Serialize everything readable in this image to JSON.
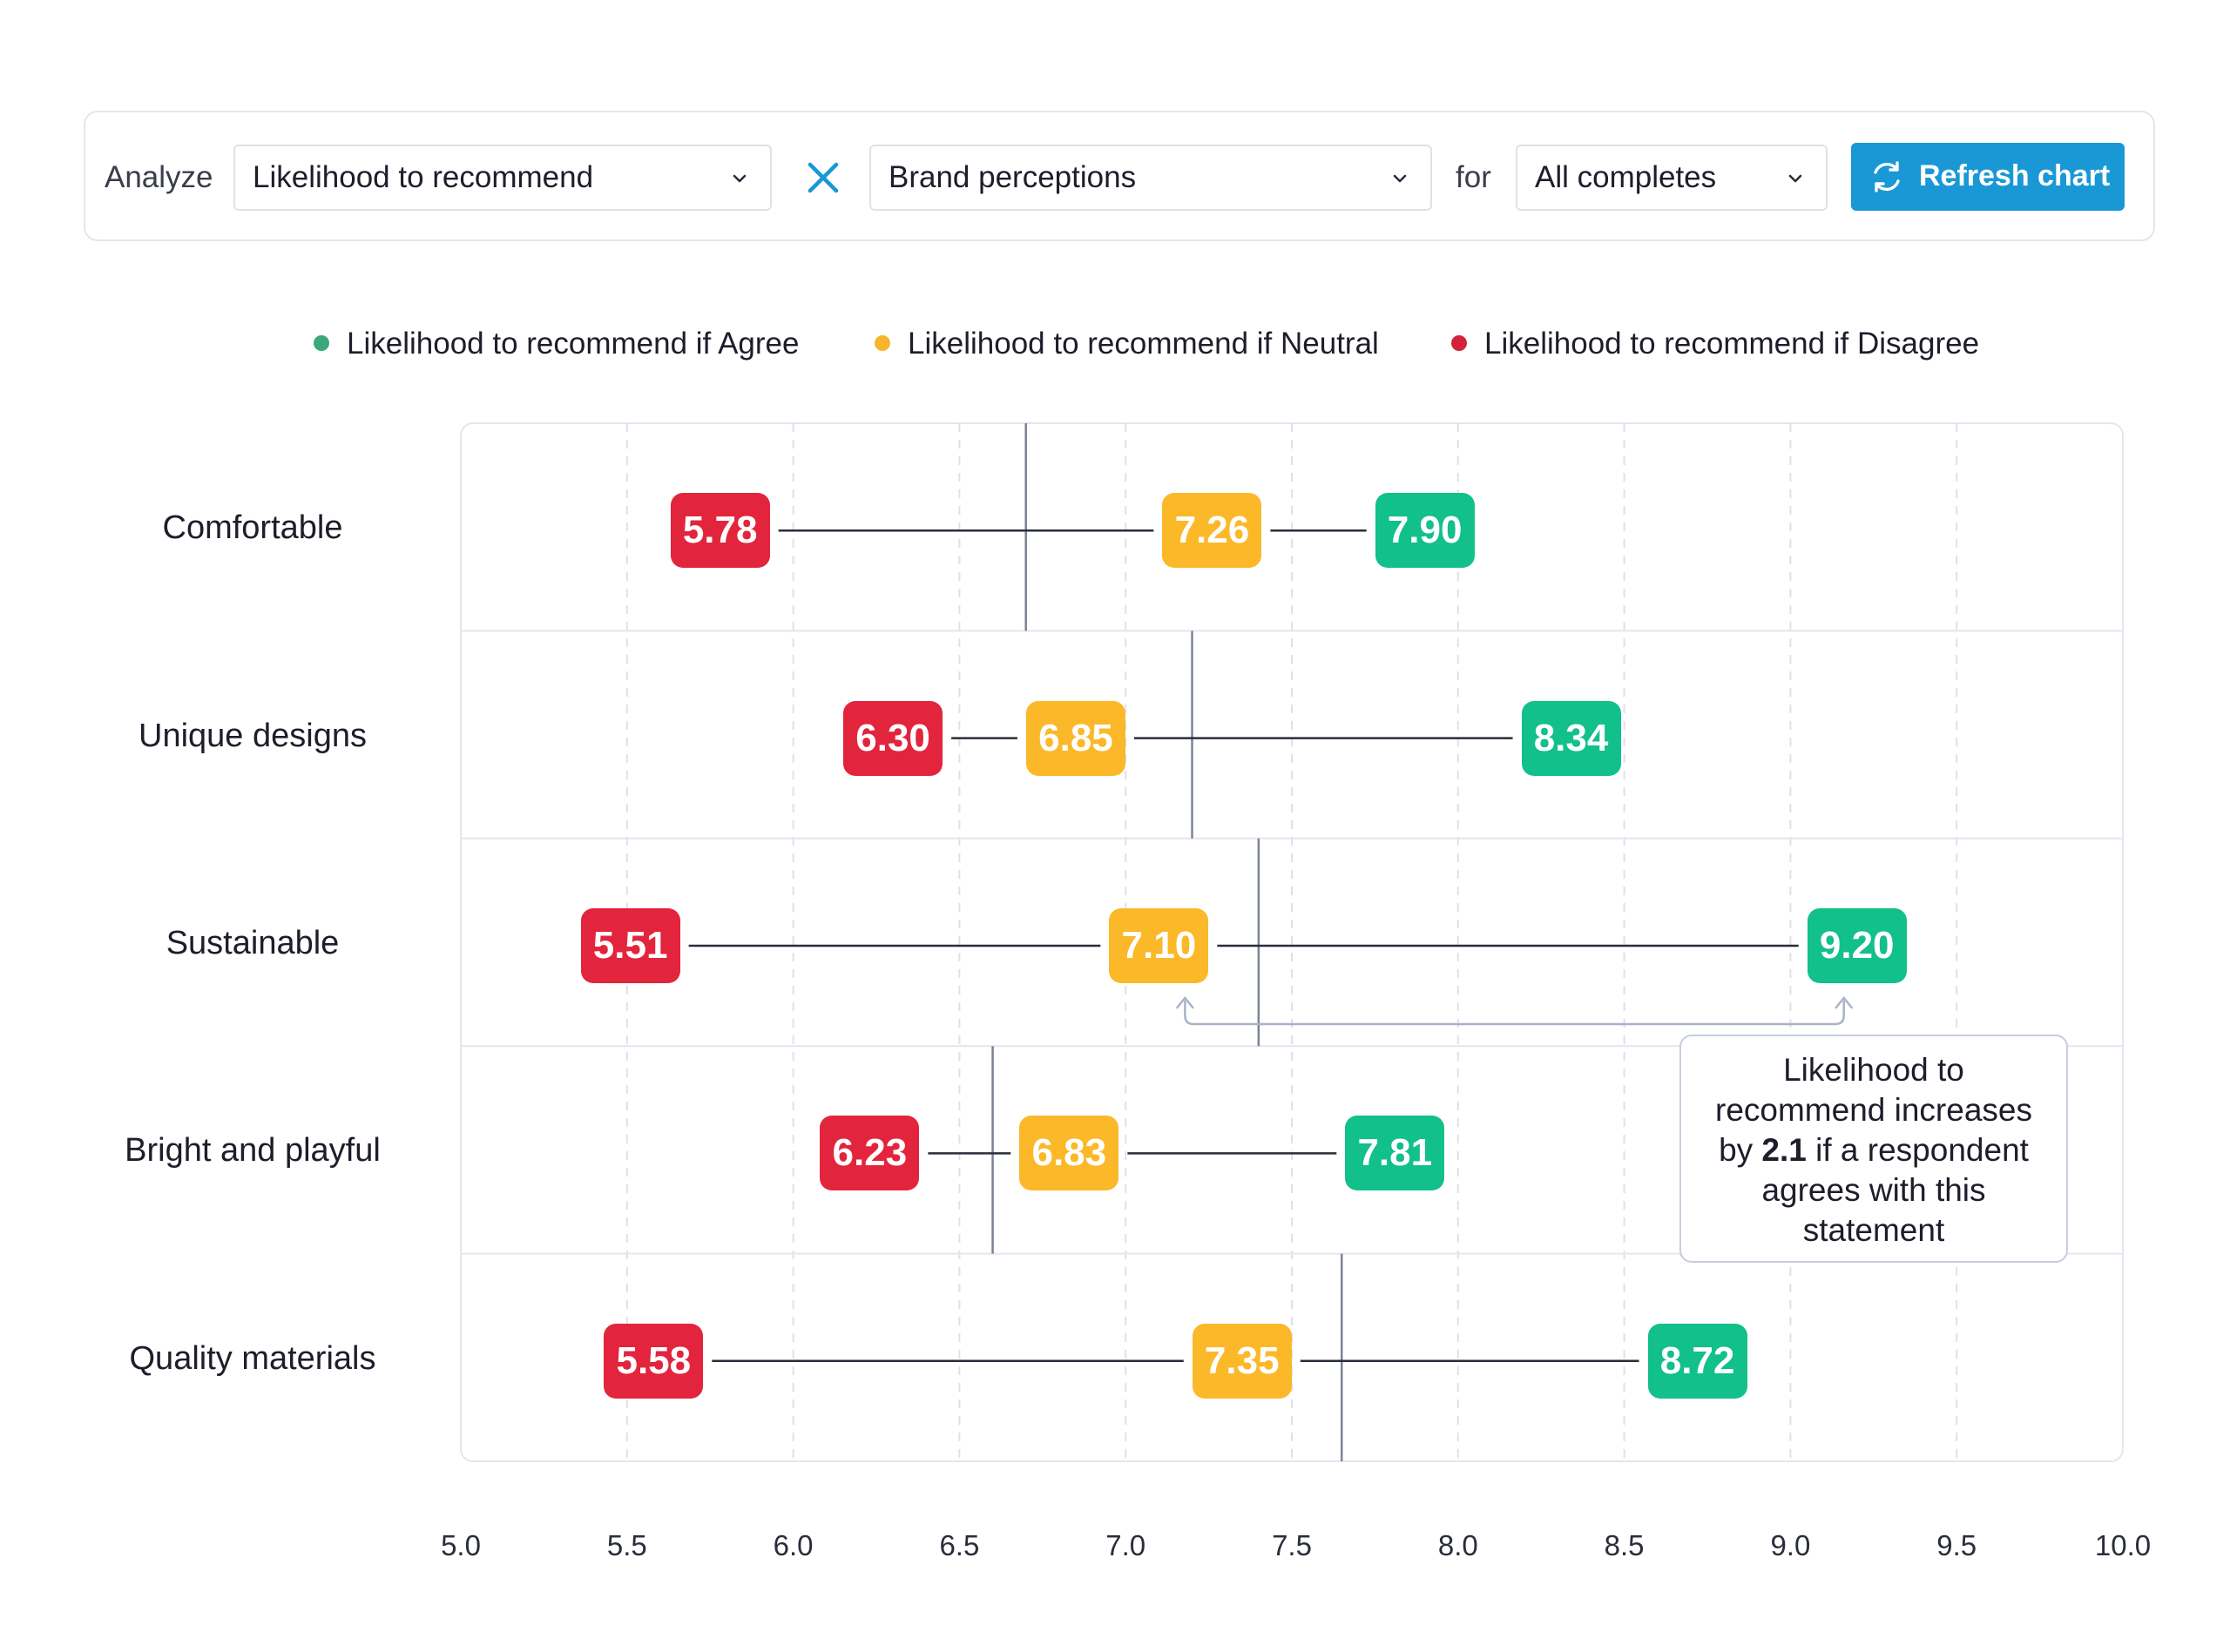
{
  "toolbar": {
    "analyze_label": "Analyze",
    "metric_select": "Likelihood to recommend",
    "dimension_select": "Brand perceptions",
    "for_label": "for",
    "segment_select": "All completes",
    "refresh_label": "Refresh chart",
    "icons": {
      "chevron": "chevron-down-icon",
      "clear": "close-icon",
      "refresh": "refresh-icon"
    }
  },
  "colors": {
    "agree": "#11c08a",
    "neutral": "#fbb829",
    "disagree": "#e3243d",
    "accent": "#1a98d6",
    "legend_agree": "#3aa77c",
    "legend_neutral": "#f6b52f",
    "legend_disagree": "#d3233a"
  },
  "callout": {
    "line1": "Likelihood to",
    "line2": "recommend increases",
    "line3_pre": "by ",
    "line3_bold": "2.1",
    "line3_post": " if a respondent",
    "line4": "agrees with this",
    "line5": "statement"
  },
  "chart_data": {
    "type": "dumbbell",
    "xlim": [
      5.0,
      10.0
    ],
    "x_ticks": [
      "5.0",
      "5.5",
      "6.0",
      "6.5",
      "7.0",
      "7.5",
      "8.0",
      "8.5",
      "9.0",
      "9.5",
      "10.0"
    ],
    "legend_placement": "top",
    "grid": true,
    "series": [
      {
        "key": "agree",
        "name": "Likelihood to recommend if Agree"
      },
      {
        "key": "neutral",
        "name": "Likelihood to recommend if Neutral"
      },
      {
        "key": "disagree",
        "name": "Likelihood to recommend if Disagree"
      }
    ],
    "rows": [
      {
        "label": "Comfortable",
        "disagree": "5.78",
        "neutral": "7.26",
        "agree": "7.90",
        "average": 6.7
      },
      {
        "label": "Unique designs",
        "disagree": "6.30",
        "neutral": "6.85",
        "agree": "8.34",
        "average": 7.2
      },
      {
        "label": "Sustainable",
        "disagree": "5.51",
        "neutral": "7.10",
        "agree": "9.20",
        "average": 7.4
      },
      {
        "label": "Bright and playful",
        "disagree": "6.23",
        "neutral": "6.83",
        "agree": "7.81",
        "average": 6.6
      },
      {
        "label": "Quality materials",
        "disagree": "5.58",
        "neutral": "7.35",
        "agree": "8.72",
        "average": 7.65
      }
    ],
    "annotation_row": "Sustainable"
  }
}
